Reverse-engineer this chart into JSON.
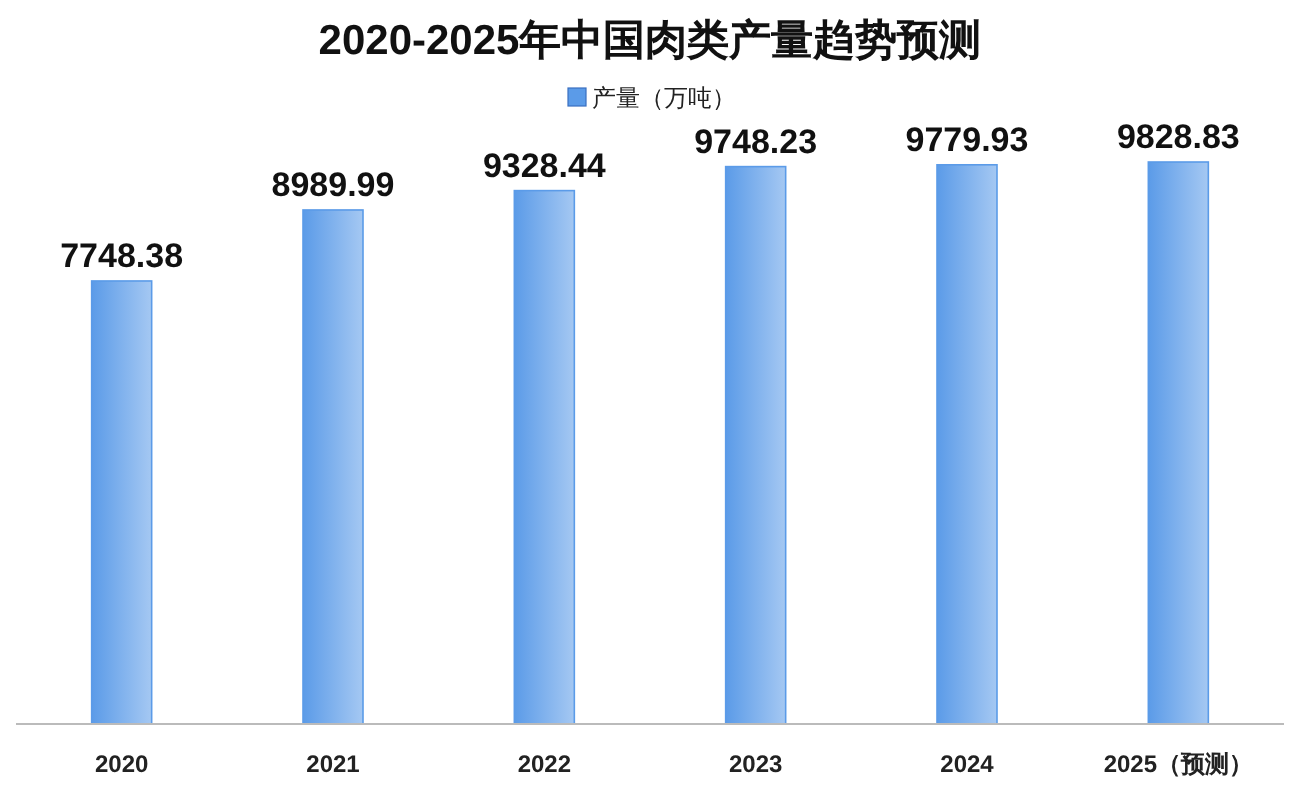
{
  "chart_data": {
    "type": "bar",
    "title": "2020-2025年中国肉类产量趋势预测",
    "categories": [
      "2020",
      "2021",
      "2022",
      "2023",
      "2024",
      "2025（预测）"
    ],
    "series": [
      {
        "name": "产量（万吨）",
        "color": "#5b9be8",
        "values": [
          7748.38,
          8989.99,
          9328.44,
          9748.23,
          9779.93,
          9828.83
        ]
      }
    ],
    "data_labels": true,
    "legend": "top"
  }
}
